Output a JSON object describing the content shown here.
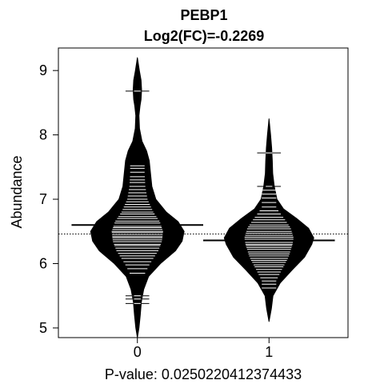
{
  "chart_data": {
    "type": "beanplot",
    "title": "PEBP1",
    "subtitle": "Log2(FC)=-0.2269",
    "xlabel": "P-value: 0.0250220412374433",
    "ylabel": "Abundance",
    "categories": [
      "0",
      "1"
    ],
    "xlim": [
      -0.6,
      1.6
    ],
    "ylim": [
      4.85,
      9.35
    ],
    "yticks": [
      5,
      6,
      7,
      8,
      9
    ],
    "overall_mean": 6.46,
    "colors": {
      "bean_fill": "#000000",
      "data_lines": "#ffffff",
      "mean_line": "#000000",
      "background": "#ffffff"
    },
    "series": [
      {
        "name": "0",
        "x": 0,
        "mean": 6.6,
        "density": [
          [
            4.85,
            0.0
          ],
          [
            5.0,
            0.012
          ],
          [
            5.2,
            0.022
          ],
          [
            5.4,
            0.03
          ],
          [
            5.6,
            0.048
          ],
          [
            5.8,
            0.085
          ],
          [
            6.0,
            0.175
          ],
          [
            6.2,
            0.29
          ],
          [
            6.35,
            0.34
          ],
          [
            6.5,
            0.355
          ],
          [
            6.65,
            0.31
          ],
          [
            6.8,
            0.22
          ],
          [
            7.0,
            0.14
          ],
          [
            7.2,
            0.11
          ],
          [
            7.4,
            0.1
          ],
          [
            7.6,
            0.09
          ],
          [
            7.75,
            0.07
          ],
          [
            7.9,
            0.035
          ],
          [
            8.1,
            0.016
          ],
          [
            8.3,
            0.012
          ],
          [
            8.45,
            0.02
          ],
          [
            8.55,
            0.028
          ],
          [
            8.7,
            0.032
          ],
          [
            8.85,
            0.028
          ],
          [
            9.0,
            0.015
          ],
          [
            9.2,
            0.0
          ]
        ],
        "points": [
          5.38,
          5.45,
          5.5,
          5.85,
          5.92,
          5.98,
          6.03,
          6.08,
          6.12,
          6.16,
          6.2,
          6.24,
          6.28,
          6.3,
          6.34,
          6.37,
          6.4,
          6.42,
          6.45,
          6.48,
          6.5,
          6.53,
          6.56,
          6.58,
          6.6,
          6.63,
          6.66,
          6.7,
          6.73,
          6.77,
          6.8,
          6.84,
          6.88,
          6.92,
          6.96,
          7.0,
          7.05,
          7.1,
          7.15,
          7.2,
          7.26,
          7.3,
          7.35,
          7.42,
          7.48,
          7.52,
          8.68
        ]
      },
      {
        "name": "1",
        "x": 1,
        "mean": 6.36,
        "density": [
          [
            5.1,
            0.0
          ],
          [
            5.3,
            0.018
          ],
          [
            5.5,
            0.03
          ],
          [
            5.7,
            0.085
          ],
          [
            5.9,
            0.175
          ],
          [
            6.1,
            0.27
          ],
          [
            6.3,
            0.325
          ],
          [
            6.4,
            0.34
          ],
          [
            6.55,
            0.3
          ],
          [
            6.7,
            0.21
          ],
          [
            6.85,
            0.11
          ],
          [
            7.0,
            0.06
          ],
          [
            7.2,
            0.04
          ],
          [
            7.4,
            0.028
          ],
          [
            7.6,
            0.025
          ],
          [
            7.8,
            0.02
          ],
          [
            8.0,
            0.012
          ],
          [
            8.25,
            0.0
          ]
        ],
        "points": [
          5.62,
          5.68,
          5.73,
          5.78,
          5.83,
          5.87,
          5.91,
          5.95,
          5.98,
          6.02,
          6.05,
          6.08,
          6.12,
          6.15,
          6.18,
          6.22,
          6.25,
          6.28,
          6.3,
          6.33,
          6.36,
          6.38,
          6.41,
          6.44,
          6.47,
          6.5,
          6.54,
          6.57,
          6.6,
          6.64,
          6.68,
          6.72,
          6.77,
          6.82,
          6.88,
          6.95,
          7.02,
          7.08,
          7.14,
          7.2,
          7.72
        ]
      }
    ]
  }
}
